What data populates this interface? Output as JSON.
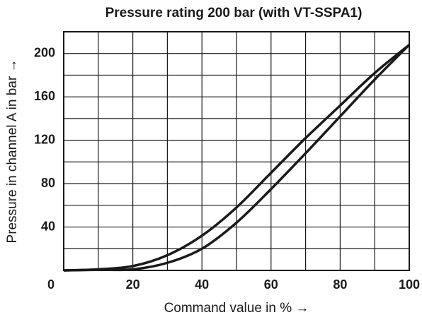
{
  "chart_data": {
    "type": "line",
    "title": "Pressure rating 200 bar (with VT-SSPA1)",
    "x_label": "Command value in % →",
    "y_label": "Pressure in channel A in bar →",
    "x": [
      0,
      10,
      20,
      30,
      40,
      50,
      60,
      70,
      80,
      90,
      100
    ],
    "series": [
      {
        "color": "#1a1a1a",
        "values": [
          0,
          1,
          4,
          14,
          32,
          58,
          90,
          122,
          152,
          182,
          208
        ]
      },
      {
        "color": "#1a1a1a",
        "values": [
          0,
          0.5,
          1,
          7,
          20,
          44,
          75,
          108,
          142,
          176,
          208
        ]
      }
    ],
    "xlim": [
      0,
      100
    ],
    "xticks": [
      0,
      20,
      40,
      60,
      80,
      100
    ],
    "xminor": [
      10,
      30,
      50,
      70,
      90
    ],
    "ylim": [
      0,
      220
    ],
    "yticks": [
      40,
      80,
      120,
      160,
      200
    ],
    "yminor": [
      20,
      60,
      100,
      140,
      180
    ],
    "grid": true
  }
}
